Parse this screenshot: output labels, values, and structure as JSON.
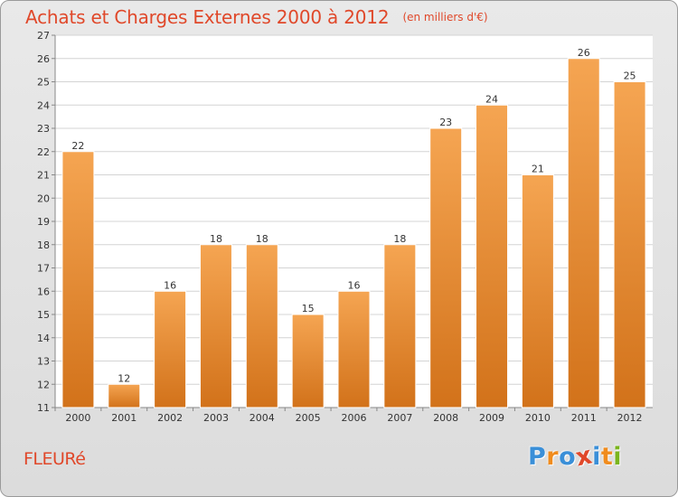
{
  "header": {
    "title": "Achats et Charges Externes 2000 à 2012",
    "unit": "(en milliers d'€)"
  },
  "footer": {
    "commune": "FLEURé",
    "brand": [
      "P",
      "r",
      "o",
      "x",
      "i",
      "t",
      "i"
    ],
    "brand_colors": [
      "#3a8fd8",
      "#f08c1e",
      "#3a8fd8",
      "#e0482a",
      "#3a8fd8",
      "#f08c1e",
      "#7ab51d"
    ]
  },
  "colors": {
    "bar_top": "#f5a552",
    "bar_bottom": "#d2721a",
    "title": "#e0482a",
    "plot_bg": "#ffffff",
    "grid": "#d4d4d4",
    "axis_text": "#333333"
  },
  "chart_data": {
    "type": "bar",
    "categories": [
      "2000",
      "2001",
      "2002",
      "2003",
      "2004",
      "2005",
      "2006",
      "2007",
      "2008",
      "2009",
      "2010",
      "2011",
      "2012"
    ],
    "values": [
      22,
      12,
      16,
      18,
      18,
      15,
      16,
      18,
      23,
      24,
      21,
      26,
      25
    ],
    "data_labels": [
      "22",
      "12",
      "16",
      "18",
      "18",
      "15",
      "16",
      "18",
      "23",
      "24",
      "21",
      "26",
      "25"
    ],
    "ylim": [
      11,
      27
    ],
    "yticks": [
      11,
      12,
      13,
      14,
      15,
      16,
      17,
      18,
      19,
      20,
      21,
      22,
      23,
      24,
      25,
      26,
      27
    ],
    "ytick_labels": [
      "11",
      "12",
      "13",
      "14",
      "15",
      "16",
      "17",
      "18",
      "19",
      "20",
      "21",
      "22",
      "23",
      "24",
      "25",
      "26",
      "27"
    ],
    "grid": true,
    "legend": "none"
  }
}
